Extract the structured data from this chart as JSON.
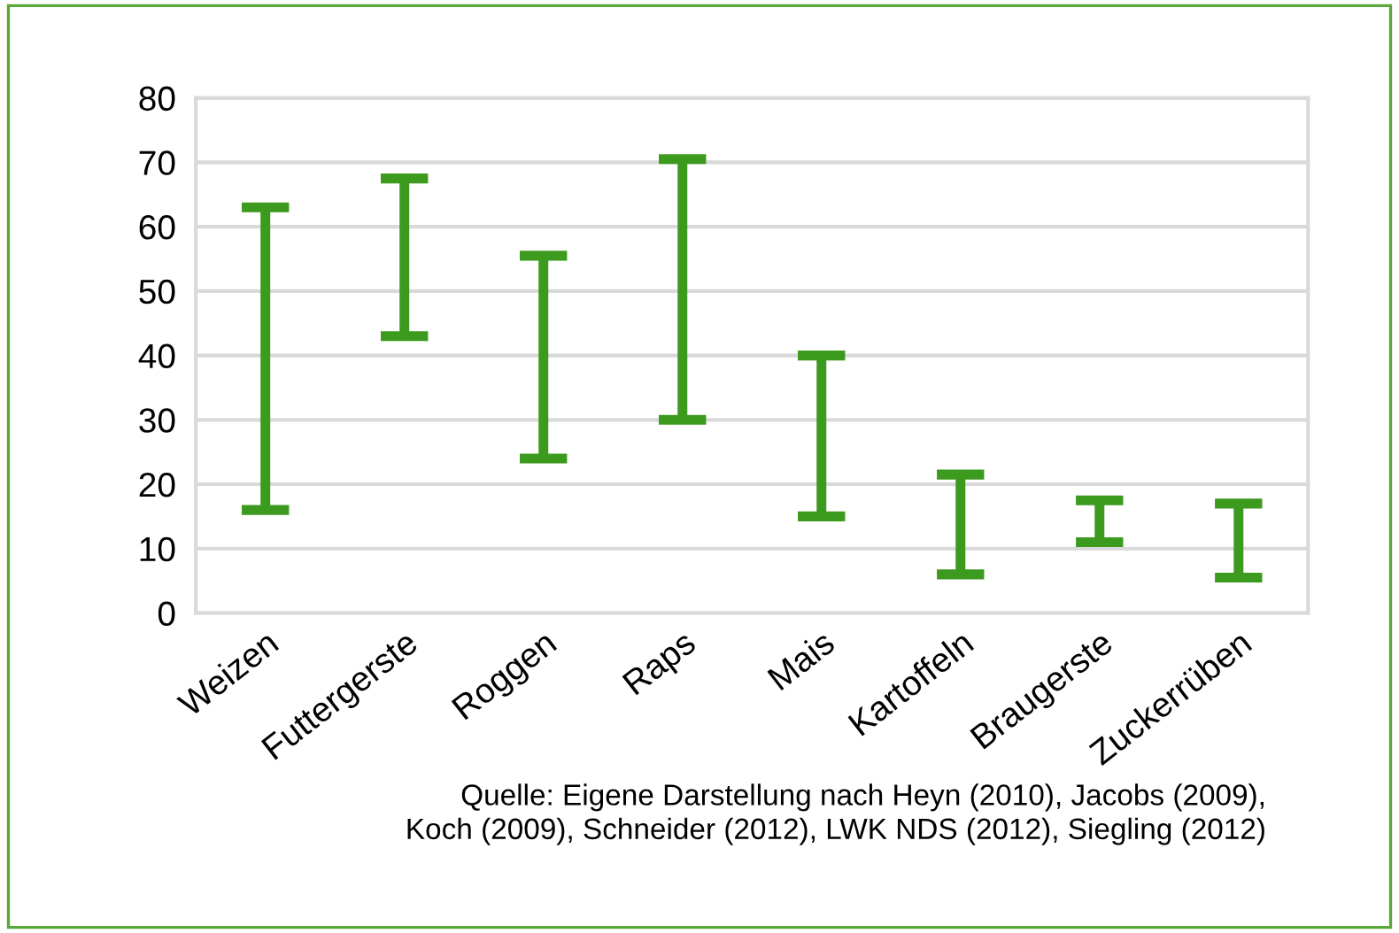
{
  "chart_data": {
    "type": "bar",
    "categories": [
      "Weizen",
      "Futtergerste",
      "Roggen",
      "Raps",
      "Mais",
      "Kartoffeln",
      "Braugerste",
      "Zuckerrüben"
    ],
    "base": [
      16,
      43,
      24,
      30,
      15,
      6,
      11,
      5.5
    ],
    "values": [
      47,
      24.5,
      31.5,
      40.5,
      25,
      15.5,
      6.5,
      11.5
    ],
    "color": "#3c9a1e",
    "ylim": [
      0,
      80
    ],
    "yticks": [
      0,
      10,
      20,
      30,
      40,
      50,
      60,
      70,
      80
    ],
    "grid": "y",
    "annotations": [
      "Quelle: Eigene Darstellung nach Heyn (2010), Jacobs (2009),\nKoch (2009), Schneider (2012), LWK NDS (2012), Siegling (2012)"
    ]
  }
}
